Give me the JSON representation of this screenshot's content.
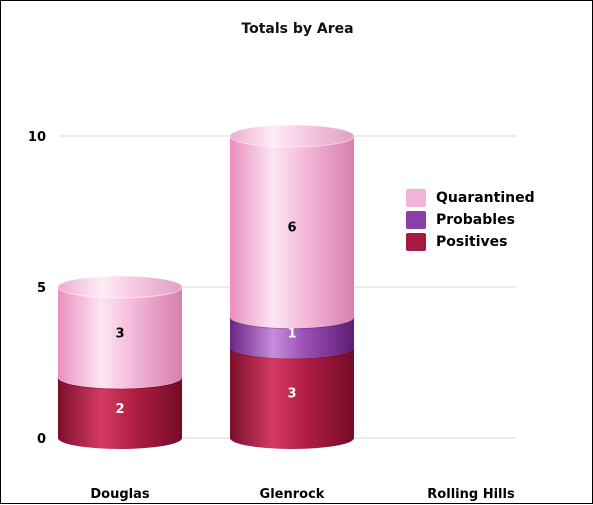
{
  "chart_data": {
    "type": "bar",
    "stacked": true,
    "style": "3d-cylinder",
    "title": "Totals by Area",
    "categories": [
      "Douglas",
      "Glenrock",
      "Rolling Hills"
    ],
    "series": [
      {
        "name": "Positives",
        "values": [
          2,
          3,
          0
        ],
        "color": "#a51a3f"
      },
      {
        "name": "Probables",
        "values": [
          0,
          1,
          0
        ],
        "color": "#8a3fa6"
      },
      {
        "name": "Quarantined",
        "values": [
          3,
          6,
          0
        ],
        "color": "#f2b3d8"
      }
    ],
    "legend_order": [
      "Quarantined",
      "Probables",
      "Positives"
    ],
    "yticks": [
      0,
      5,
      10
    ],
    "ylim": [
      0,
      11
    ],
    "grid": true,
    "legend_position": "right"
  }
}
